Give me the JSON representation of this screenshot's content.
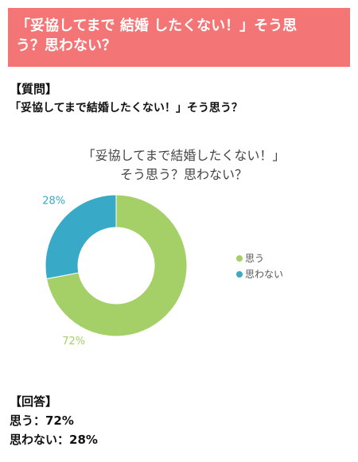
{
  "banner": {
    "line1": "「妥協してまで 結婚 したくない！」そう思",
    "line2": "う？思わない？"
  },
  "question": {
    "heading": "【質問】",
    "text": "「妥協してまで結婚したくない！」そう思う？"
  },
  "answer": {
    "heading": "【回答】",
    "lines": [
      "思う：72%",
      "思わない：28%"
    ]
  },
  "legend": [
    {
      "label": "思う",
      "color": "#a5cf67"
    },
    {
      "label": "思わない",
      "color": "#38a9c6"
    }
  ],
  "chart_data": {
    "type": "pie",
    "title": "「妥協してまで結婚したくない！」そう思う？思わない？",
    "title_lines": [
      "「妥協してまで結婚したくない！」",
      "そう思う？思わない？"
    ],
    "donut": true,
    "legend_position": "right",
    "categories": [
      "思う",
      "思わない"
    ],
    "values": [
      72,
      28
    ],
    "labels": [
      "72%",
      "28%"
    ],
    "colors": [
      "#a5cf67",
      "#38a9c6"
    ]
  }
}
